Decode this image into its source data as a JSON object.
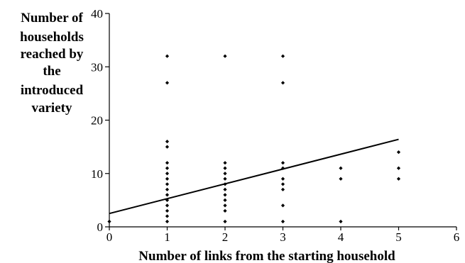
{
  "chart_data": {
    "type": "scatter",
    "title": "",
    "xlabel": "Number of links from the starting household",
    "ylabel_lines": [
      "Number of",
      "households",
      "reached by",
      "the",
      "introduced",
      "variety"
    ],
    "xlim": [
      0,
      6
    ],
    "ylim": [
      0,
      40
    ],
    "xticks": [
      0,
      1,
      2,
      3,
      4,
      5,
      6
    ],
    "yticks": [
      0,
      10,
      20,
      30,
      40
    ],
    "grid": false,
    "legend": "none",
    "marker_color": "#000000",
    "points": [
      {
        "x": 0,
        "y": 1
      },
      {
        "x": 1,
        "y": 32
      },
      {
        "x": 1,
        "y": 27
      },
      {
        "x": 1,
        "y": 16
      },
      {
        "x": 1,
        "y": 15
      },
      {
        "x": 1,
        "y": 12
      },
      {
        "x": 1,
        "y": 11
      },
      {
        "x": 1,
        "y": 10
      },
      {
        "x": 1,
        "y": 9
      },
      {
        "x": 1,
        "y": 8
      },
      {
        "x": 1,
        "y": 7
      },
      {
        "x": 1,
        "y": 6
      },
      {
        "x": 1,
        "y": 5
      },
      {
        "x": 1,
        "y": 4
      },
      {
        "x": 1,
        "y": 3
      },
      {
        "x": 1,
        "y": 2
      },
      {
        "x": 1,
        "y": 1
      },
      {
        "x": 2,
        "y": 32
      },
      {
        "x": 2,
        "y": 12
      },
      {
        "x": 2,
        "y": 11
      },
      {
        "x": 2,
        "y": 10
      },
      {
        "x": 2,
        "y": 9
      },
      {
        "x": 2,
        "y": 8
      },
      {
        "x": 2,
        "y": 7
      },
      {
        "x": 2,
        "y": 6
      },
      {
        "x": 2,
        "y": 5
      },
      {
        "x": 2,
        "y": 4
      },
      {
        "x": 2,
        "y": 3
      },
      {
        "x": 2,
        "y": 1
      },
      {
        "x": 3,
        "y": 32
      },
      {
        "x": 3,
        "y": 27
      },
      {
        "x": 3,
        "y": 12
      },
      {
        "x": 3,
        "y": 11
      },
      {
        "x": 3,
        "y": 9
      },
      {
        "x": 3,
        "y": 8
      },
      {
        "x": 3,
        "y": 7
      },
      {
        "x": 3,
        "y": 4
      },
      {
        "x": 3,
        "y": 1
      },
      {
        "x": 4,
        "y": 11
      },
      {
        "x": 4,
        "y": 9
      },
      {
        "x": 4,
        "y": 1
      },
      {
        "x": 5,
        "y": 14
      },
      {
        "x": 5,
        "y": 11
      },
      {
        "x": 5,
        "y": 9
      }
    ],
    "trend_line": {
      "x": [
        0,
        5
      ],
      "y": [
        2.5,
        16.4
      ]
    }
  }
}
